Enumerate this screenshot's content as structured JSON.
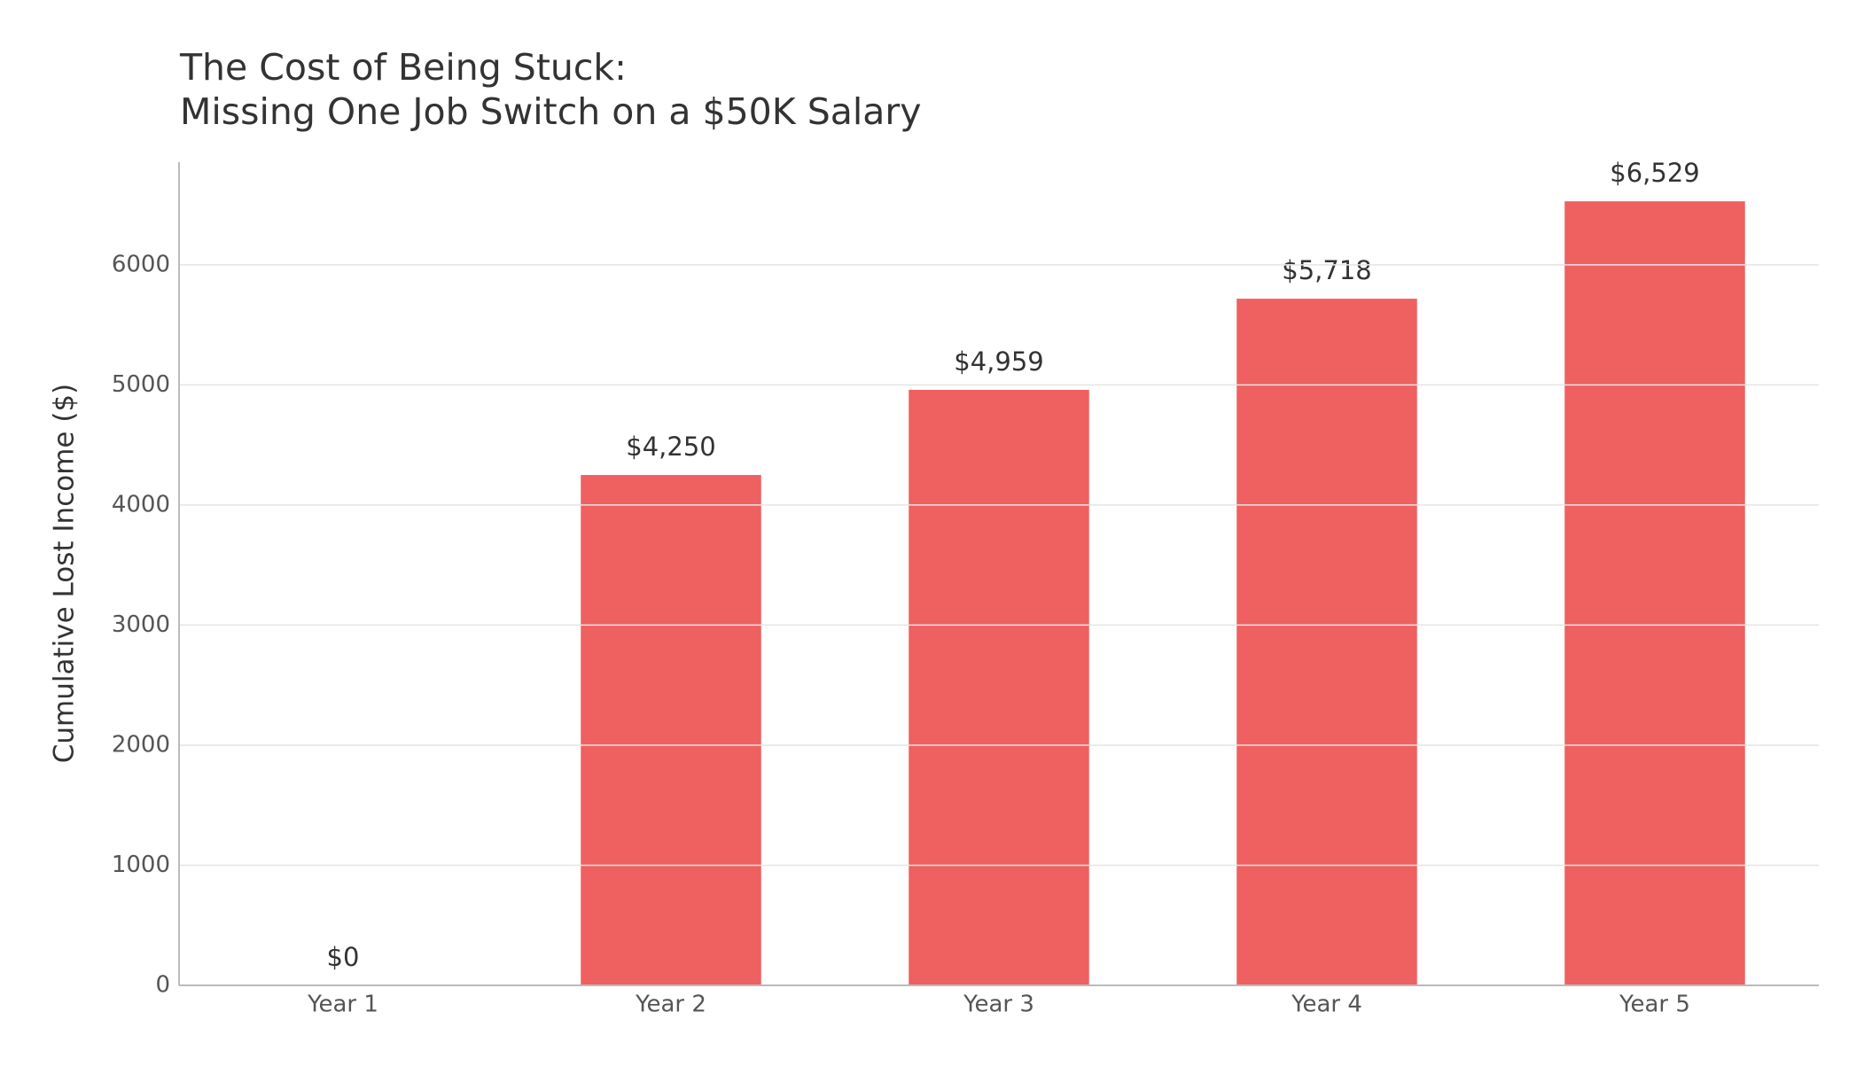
{
  "chart_data": {
    "type": "bar",
    "title_lines": [
      "The Cost of Being Stuck:",
      "Missing One Job Switch on a $50K Salary"
    ],
    "y_label": "Cumulative Lost Income ($)",
    "categories": [
      "Year 1",
      "Year 2",
      "Year 3",
      "Year 4",
      "Year 5"
    ],
    "values": [
      0,
      4250,
      4959,
      5718,
      6529
    ],
    "value_labels": [
      "$0",
      "$4,250",
      "$4,959",
      "$5,718",
      "$6,529"
    ],
    "color": "#ef6060",
    "ylim": [
      0,
      6855
    ],
    "yticks": [
      0,
      1000,
      2000,
      3000,
      4000,
      5000,
      6000
    ],
    "grid": true
  }
}
